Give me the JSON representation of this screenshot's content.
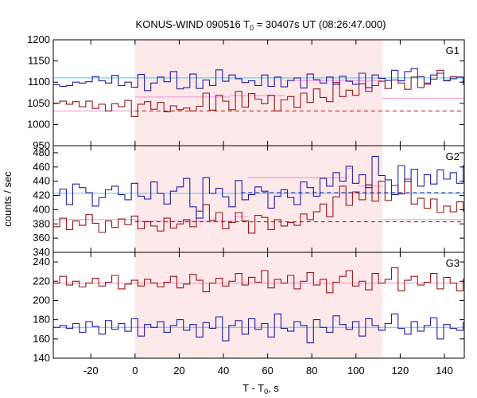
{
  "chart_data": {
    "type": "line",
    "title": "KONUS-WIND 090516 T",
    "title_sub": "0",
    "title_rest": " = 30407s UT (08:26:47.000)",
    "xlabel": "T - T",
    "xlabel_sub": "0",
    "xlabel_rest": ", s",
    "ylabel": "counts / sec",
    "xlim": [
      -37,
      149
    ],
    "xticks": [
      -20,
      0,
      20,
      40,
      60,
      80,
      100,
      120,
      140
    ],
    "highlight": {
      "x0": 0,
      "x1": 112,
      "color": "#fde8ea"
    },
    "colors": {
      "blue": "#2020a8",
      "red": "#9b1515",
      "cyan": "#55c8e8",
      "pink": "#e890d8",
      "dash": "#b01010"
    },
    "panels": [
      {
        "name": "G1",
        "ylim": [
          950,
          1200
        ],
        "yticks": [
          950,
          1000,
          1050,
          1100,
          1150,
          1200
        ],
        "blue": {
          "x0": -37,
          "dt": 2.944,
          "values": [
            1094,
            1090,
            1092,
            1100,
            1098,
            1101,
            1113,
            1103,
            1098,
            1116,
            1092,
            1100,
            1088,
            1118,
            1080,
            1098,
            1112,
            1101,
            1125,
            1084,
            1087,
            1119,
            1085,
            1105,
            1092,
            1129,
            1102,
            1117,
            1108,
            1099,
            1103,
            1092,
            1117,
            1090,
            1112,
            1089,
            1104,
            1110,
            1086,
            1119,
            1106,
            1098,
            1112,
            1095,
            1114,
            1102,
            1095,
            1121,
            1087,
            1117,
            1109,
            1104,
            1128,
            1103,
            1125,
            1132,
            1113,
            1098,
            1117,
            1121,
            1104,
            1108,
            1112,
            1095,
            1118,
            1099,
            1105,
            1121,
            1101,
            1107,
            1099,
            1085,
            1098,
            1114,
            1094,
            1083,
            1095,
            1122,
            1105,
            1099,
            1103,
            1094,
            1110,
            1121,
            1103,
            1124,
            1092,
            1101,
            1109,
            1097,
            1084,
            1102,
            1110,
            1093,
            1115
          ]
        },
        "red": {
          "x0": -37,
          "dt": 2.944,
          "values": [
            1050,
            1055,
            1048,
            1054,
            1042,
            1055,
            1038,
            1048,
            1032,
            1049,
            1042,
            1057,
            1019,
            1048,
            1054,
            1036,
            1052,
            1030,
            1044,
            1035,
            1039,
            1032,
            1043,
            1074,
            1034,
            1069,
            1055,
            1035,
            1078,
            1041,
            1073,
            1060,
            1049,
            1069,
            1032,
            1058,
            1066,
            1040,
            1074,
            1052,
            1084,
            1064,
            1054,
            1099,
            1066,
            1081,
            1069,
            1096,
            1078,
            1092,
            1102,
            1085,
            1105,
            1098,
            1083,
            1112,
            1087,
            1095,
            1107,
            1128,
            1103,
            1113,
            1112,
            1102,
            1092,
            1146,
            1124,
            1105,
            1122,
            1103,
            1117,
            1109,
            1128,
            1115,
            1062,
            1052,
            1074,
            1040,
            1067,
            1036,
            1055,
            1050,
            1073,
            1043,
            1032,
            1060,
            1053,
            1071,
            1048,
            1038,
            1066,
            1075,
            1049,
            1061,
            1091
          ]
        },
        "cyan": {
          "level": 1110
        },
        "pink": [
          {
            "x0": -37,
            "x1": 0,
            "y": 1032
          },
          {
            "x0": 0,
            "x1": 43,
            "y": 1065
          },
          {
            "x0": 43,
            "x1": 68,
            "y": 1068
          },
          {
            "x0": 68,
            "x1": 112,
            "y": 1104
          },
          {
            "x0": 112,
            "x1": 149,
            "y": 1062
          }
        ],
        "dashed": {
          "x0": 0,
          "x1": 149,
          "y": 1032
        }
      },
      {
        "name": "G2",
        "ylim": [
          340,
          490
        ],
        "yticks": [
          340,
          360,
          380,
          400,
          420,
          440,
          460,
          480
        ],
        "blue": {
          "x0": -37,
          "dt": 2.944,
          "values": [
            420,
            429,
            407,
            436,
            431,
            424,
            405,
            417,
            428,
            433,
            421,
            414,
            437,
            419,
            415,
            439,
            423,
            408,
            426,
            432,
            444,
            404,
            388,
            445,
            423,
            430,
            418,
            404,
            441,
            414,
            421,
            432,
            426,
            402,
            419,
            428,
            417,
            407,
            439,
            431,
            419,
            444,
            433,
            452,
            440,
            461,
            437,
            449,
            431,
            475,
            448,
            442,
            421,
            462,
            440,
            457,
            433,
            449,
            436,
            456,
            443,
            452,
            437,
            462,
            429,
            448,
            426,
            445,
            419,
            436,
            420,
            438,
            426,
            412,
            433,
            405,
            431,
            418,
            426,
            408,
            426,
            430,
            419,
            434,
            409,
            421,
            425,
            432,
            417,
            438,
            415,
            431,
            422,
            440,
            412
          ]
        },
        "red": {
          "x0": -37,
          "dt": 2.944,
          "values": [
            376,
            388,
            372,
            384,
            378,
            393,
            381,
            368,
            384,
            375,
            387,
            379,
            391,
            373,
            383,
            377,
            370,
            388,
            374,
            380,
            386,
            376,
            398,
            407,
            385,
            396,
            373,
            382,
            396,
            384,
            367,
            392,
            389,
            372,
            386,
            377,
            382,
            378,
            394,
            386,
            397,
            408,
            390,
            418,
            433,
            406,
            425,
            414,
            435,
            412,
            440,
            413,
            434,
            422,
            443,
            408,
            416,
            402,
            415,
            396,
            405,
            397,
            411,
            398,
            384,
            420,
            402,
            394,
            417,
            388,
            405,
            384,
            391,
            399,
            386,
            376,
            392,
            380,
            388,
            373,
            396,
            378,
            382,
            369,
            376,
            390,
            374,
            383,
            394,
            372,
            386,
            378,
            392,
            383,
            376
          ]
        },
        "cyan": {
          "level": 423
        },
        "pink": [
          {
            "x0": -37,
            "x1": 0,
            "y": 386
          },
          {
            "x0": 0,
            "x1": 45,
            "y": 384
          },
          {
            "x0": 45,
            "x1": 51,
            "y": 390
          },
          {
            "x0": 51,
            "x1": 96,
            "y": 445
          },
          {
            "x0": 96,
            "x1": 98,
            "y": 458
          },
          {
            "x0": 98,
            "x1": 101,
            "y": 490
          },
          {
            "x0": 101,
            "x1": 112,
            "y": 433
          },
          {
            "x0": 112,
            "x1": 149,
            "y": 386
          }
        ],
        "dashed": {
          "x0": 0,
          "x1": 149,
          "y": 383
        },
        "dashed_blue": {
          "x0": 48,
          "x1": 149,
          "y": 424
        }
      },
      {
        "name": "G3",
        "ylim": [
          140,
          250
        ],
        "yticks": [
          140,
          160,
          180,
          200,
          220,
          240
        ],
        "blue": {
          "x0": -37,
          "dt": 2.944,
          "values": [
            172,
            174,
            171,
            176,
            167,
            178,
            173,
            165,
            179,
            170,
            176,
            168,
            181,
            163,
            175,
            172,
            178,
            167,
            174,
            180,
            169,
            175,
            162,
            177,
            171,
            183,
            158,
            174,
            179,
            165,
            181,
            170,
            176,
            162,
            186,
            171,
            168,
            178,
            174,
            156,
            180,
            172,
            167,
            184,
            175,
            170,
            178,
            163,
            181,
            174,
            169,
            176,
            186,
            171,
            165,
            178,
            168,
            174,
            182,
            160,
            175,
            171,
            169,
            177,
            167,
            173,
            182,
            165,
            176,
            170,
            178,
            164,
            174,
            169,
            180,
            162,
            177,
            173,
            169,
            176,
            172,
            168,
            183,
            166,
            171,
            179,
            162,
            174,
            177,
            170,
            168,
            176,
            179,
            171,
            166
          ]
        },
        "red": {
          "x0": -37,
          "dt": 2.944,
          "values": [
            218,
            225,
            216,
            220,
            214,
            218,
            223,
            215,
            219,
            226,
            212,
            217,
            221,
            215,
            222,
            218,
            214,
            219,
            225,
            213,
            217,
            227,
            221,
            209,
            218,
            223,
            215,
            220,
            228,
            216,
            224,
            219,
            231,
            213,
            222,
            218,
            226,
            212,
            220,
            229,
            216,
            222,
            208,
            219,
            225,
            231,
            215,
            220,
            211,
            228,
            218,
            222,
            234,
            210,
            221,
            225,
            216,
            219,
            228,
            212,
            224,
            218,
            210,
            222,
            228,
            215,
            219,
            224,
            216,
            221,
            212,
            219,
            227,
            216,
            223,
            209,
            217,
            221,
            215,
            225,
            218,
            213,
            223,
            217,
            208,
            222,
            216,
            219,
            226,
            212,
            221,
            218,
            223,
            215,
            217
          ]
        },
        "cyan": {
          "level": 172
        },
        "pink": [
          {
            "x0": -37,
            "x1": 149,
            "y": 218
          }
        ]
      }
    ]
  }
}
